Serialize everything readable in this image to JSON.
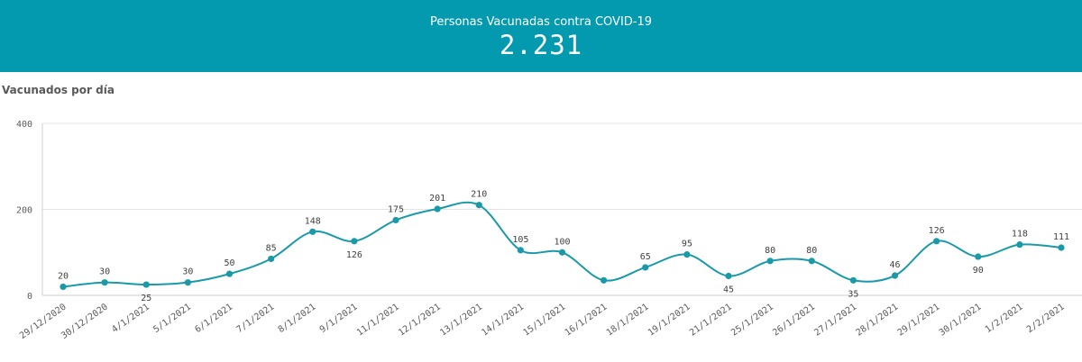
{
  "header": {
    "label": "Personas Vacunadas contra COVID-19",
    "value": "2.231"
  },
  "colors": {
    "header_bg": "#0399ae",
    "series": "#1a9aa8",
    "grid": "#e3e3e3"
  },
  "chart_data": {
    "type": "line",
    "title": "Vacunados por día",
    "xlabel": "",
    "ylabel": "",
    "ylim": [
      0,
      400
    ],
    "yticks": [
      0,
      200,
      400
    ],
    "grid": true,
    "categories": [
      "29/12/2020",
      "30/12/2020",
      "4/1/2021",
      "5/1/2021",
      "6/1/2021",
      "7/1/2021",
      "8/1/2021",
      "9/1/2021",
      "11/1/2021",
      "12/1/2021",
      "13/1/2021",
      "14/1/2021",
      "15/1/2021",
      "16/1/2021",
      "18/1/2021",
      "19/1/2021",
      "21/1/2021",
      "25/1/2021",
      "26/1/2021",
      "27/1/2021",
      "28/1/2021",
      "29/1/2021",
      "30/1/2021",
      "1/2/2021",
      "2/2/2021"
    ],
    "values": [
      20,
      30,
      25,
      30,
      50,
      85,
      148,
      126,
      175,
      201,
      210,
      105,
      100,
      35,
      65,
      95,
      45,
      80,
      80,
      35,
      46,
      126,
      90,
      118,
      111
    ],
    "labels": [
      "20",
      "30",
      "25",
      "30",
      "50",
      "85",
      "148",
      "126",
      "175",
      "201",
      "210",
      "105",
      "100",
      "",
      "65",
      "95",
      "45",
      "80",
      "80",
      "35",
      "46",
      "126",
      "90",
      "118",
      "111"
    ]
  }
}
